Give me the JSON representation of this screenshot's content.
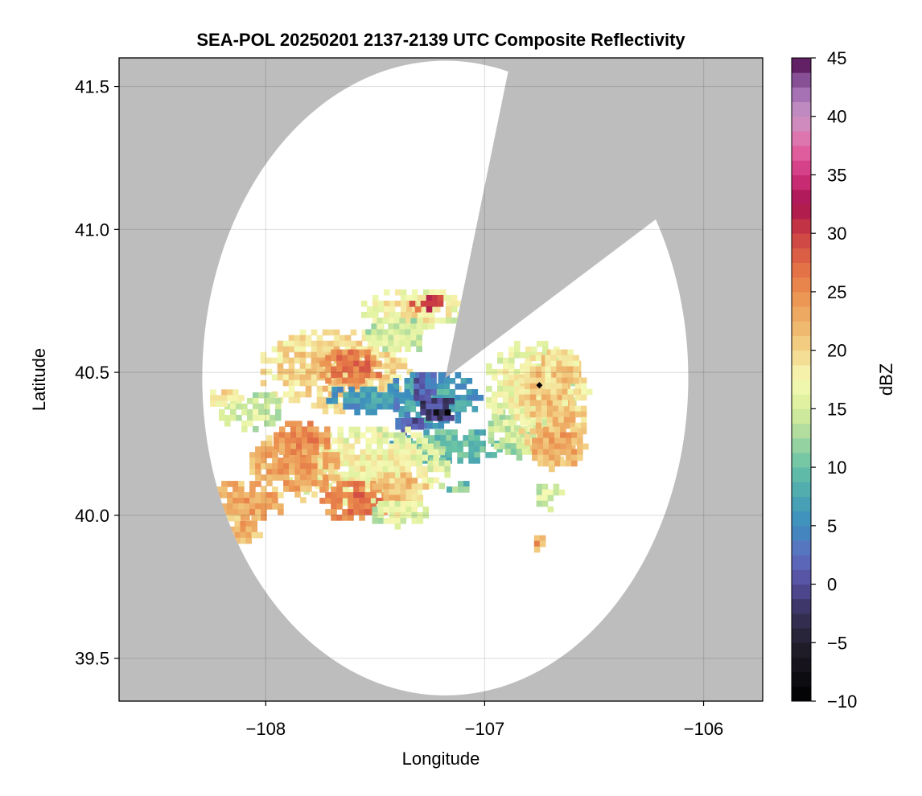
{
  "chart_data": {
    "type": "heatmap",
    "title": "SEA-POL 20250201 2137-2139 UTC Composite Reflectivity",
    "xlabel": "Longitude",
    "ylabel": "Latitude",
    "xlim": [
      -108.67,
      -105.73
    ],
    "ylim": [
      39.35,
      41.6
    ],
    "xticks": [
      -108,
      -107,
      -106
    ],
    "yticks": [
      39.5,
      40.0,
      40.5,
      41.0,
      41.5
    ],
    "xtick_labels": [
      "−108",
      "−107",
      "−106"
    ],
    "ytick_labels": [
      "39.5",
      "40.0",
      "40.5",
      "41.0",
      "41.5"
    ],
    "grid": true,
    "background_color": "#bdbdbd",
    "coverage_color": "#ffffff",
    "radar_site": {
      "lon": -107.18,
      "lat": 40.48
    },
    "coverage_radius_deg": 1.11,
    "blocked_sector_deg": [
      15,
      60
    ],
    "station_marker": {
      "lon": -106.75,
      "lat": 40.455
    },
    "colorbar": {
      "label": "dBZ",
      "min": -10,
      "max": 45,
      "step": 1.25,
      "ticks": [
        -10,
        -5,
        0,
        5,
        10,
        15,
        20,
        25,
        30,
        35,
        40,
        45
      ],
      "tick_labels": [
        "−10",
        "−5",
        "0",
        "5",
        "10",
        "15",
        "20",
        "25",
        "30",
        "35",
        "40",
        "45"
      ],
      "colormap": [
        [
          -10,
          "#000000"
        ],
        [
          -5,
          "#231f2d"
        ],
        [
          -2,
          "#3c3565"
        ],
        [
          0,
          "#564d9e"
        ],
        [
          2.5,
          "#5e6ec0"
        ],
        [
          5,
          "#3c8cbf"
        ],
        [
          7.5,
          "#4ba6b2"
        ],
        [
          10,
          "#66c2a5"
        ],
        [
          12.5,
          "#a5d79f"
        ],
        [
          15,
          "#d9ef9b"
        ],
        [
          17.5,
          "#f6f9b4"
        ],
        [
          20,
          "#f3d58a"
        ],
        [
          22.5,
          "#eeb067"
        ],
        [
          25,
          "#eb8e4e"
        ],
        [
          27.5,
          "#e06a45"
        ],
        [
          30,
          "#cb3e43"
        ],
        [
          32.5,
          "#a8124f"
        ],
        [
          35,
          "#d1357f"
        ],
        [
          37.5,
          "#e36aa7"
        ],
        [
          40,
          "#ca96c6"
        ],
        [
          42.5,
          "#9a66ad"
        ],
        [
          45,
          "#4e0a4c"
        ]
      ]
    },
    "echo_regions": [
      {
        "lon": -107.7,
        "lat": 40.52,
        "rlon": 0.35,
        "rlat": 0.15,
        "dbz": 21
      },
      {
        "lon": -107.62,
        "lat": 40.53,
        "rlon": 0.16,
        "rlat": 0.07,
        "dbz": 27
      },
      {
        "lon": -107.35,
        "lat": 40.73,
        "rlon": 0.24,
        "rlat": 0.08,
        "dbz": 19
      },
      {
        "lon": -107.28,
        "lat": 40.75,
        "rlon": 0.09,
        "rlat": 0.04,
        "dbz": 30
      },
      {
        "lon": -107.42,
        "lat": 40.64,
        "rlon": 0.15,
        "rlat": 0.07,
        "dbz": 16
      },
      {
        "lon": -107.25,
        "lat": 40.42,
        "rlon": 0.22,
        "rlat": 0.1,
        "dbz": 8
      },
      {
        "lon": -107.23,
        "lat": 40.38,
        "rlon": 0.09,
        "rlat": 0.05,
        "dbz": 0
      },
      {
        "lon": -107.22,
        "lat": 40.37,
        "rlon": 0.04,
        "rlat": 0.02,
        "dbz": -5
      },
      {
        "lon": -107.28,
        "lat": 40.46,
        "rlon": 0.07,
        "rlat": 0.06,
        "dbz": 3
      },
      {
        "lon": -107.38,
        "lat": 40.33,
        "rlon": 0.08,
        "rlat": 0.03,
        "dbz": 2
      },
      {
        "lon": -107.2,
        "lat": 40.25,
        "rlon": 0.26,
        "rlat": 0.07,
        "dbz": 11
      },
      {
        "lon": -107.55,
        "lat": 40.42,
        "rlon": 0.2,
        "rlat": 0.05,
        "dbz": 7
      },
      {
        "lon": -107.55,
        "lat": 40.18,
        "rlon": 0.38,
        "rlat": 0.15,
        "dbz": 18
      },
      {
        "lon": -107.88,
        "lat": 40.18,
        "rlon": 0.22,
        "rlat": 0.12,
        "dbz": 24
      },
      {
        "lon": -107.85,
        "lat": 40.28,
        "rlon": 0.14,
        "rlat": 0.07,
        "dbz": 26
      },
      {
        "lon": -108.1,
        "lat": 40.06,
        "rlon": 0.18,
        "rlat": 0.08,
        "dbz": 24
      },
      {
        "lon": -108.12,
        "lat": 39.96,
        "rlon": 0.1,
        "rlat": 0.06,
        "dbz": 23
      },
      {
        "lon": -107.6,
        "lat": 40.06,
        "rlon": 0.18,
        "rlat": 0.08,
        "dbz": 27
      },
      {
        "lon": -107.4,
        "lat": 40.1,
        "rlon": 0.14,
        "rlat": 0.07,
        "dbz": 22
      },
      {
        "lon": -107.4,
        "lat": 40.02,
        "rlon": 0.14,
        "rlat": 0.05,
        "dbz": 17
      },
      {
        "lon": -108.08,
        "lat": 40.38,
        "rlon": 0.16,
        "rlat": 0.07,
        "dbz": 16
      },
      {
        "lon": -108.2,
        "lat": 40.42,
        "rlon": 0.08,
        "rlat": 0.04,
        "dbz": 20
      },
      {
        "lon": -106.85,
        "lat": 40.3,
        "rlon": 0.16,
        "rlat": 0.09,
        "dbz": 15
      },
      {
        "lon": -106.8,
        "lat": 40.45,
        "rlon": 0.22,
        "rlat": 0.18,
        "dbz": 18
      },
      {
        "lon": -106.7,
        "lat": 40.4,
        "rlon": 0.17,
        "rlat": 0.2,
        "dbz": 22
      },
      {
        "lon": -106.68,
        "lat": 40.25,
        "rlon": 0.13,
        "rlat": 0.08,
        "dbz": 24
      },
      {
        "lon": -106.66,
        "lat": 40.5,
        "rlon": 0.09,
        "rlat": 0.1,
        "dbz": 21
      },
      {
        "lon": -106.72,
        "lat": 40.08,
        "rlon": 0.07,
        "rlat": 0.05,
        "dbz": 16
      },
      {
        "lon": -107.14,
        "lat": 40.11,
        "rlon": 0.06,
        "rlat": 0.03,
        "dbz": 12
      },
      {
        "lon": -106.77,
        "lat": 39.91,
        "rlon": 0.03,
        "rlat": 0.04,
        "dbz": 24
      }
    ]
  }
}
